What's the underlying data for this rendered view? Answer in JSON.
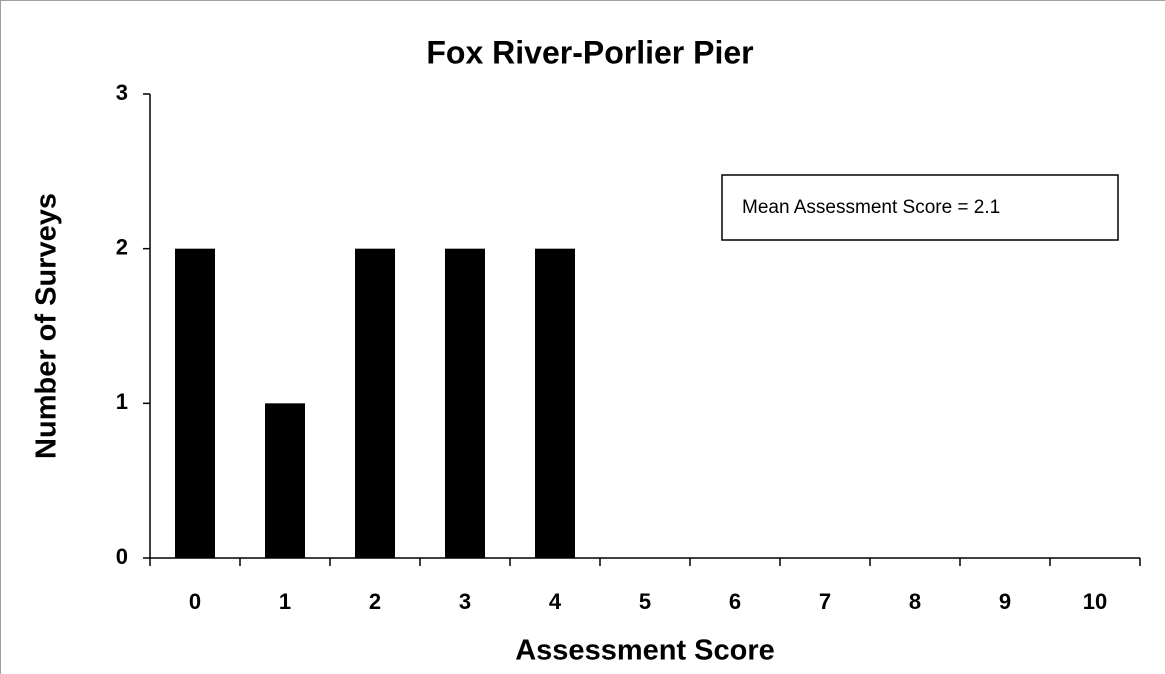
{
  "chart_data": {
    "type": "bar",
    "title": "Fox River-Porlier Pier",
    "x_label": "Assessment Score",
    "y_label": "Number of Surveys",
    "annotation": "Mean Assessment Score = 2.1",
    "categories": [
      "0",
      "1",
      "2",
      "3",
      "4",
      "5",
      "6",
      "7",
      "8",
      "9",
      "10"
    ],
    "values": [
      2,
      1,
      2,
      2,
      2,
      0,
      0,
      0,
      0,
      0,
      0
    ],
    "color": "#000000",
    "ylim": [
      0,
      3
    ],
    "yticks": [
      0,
      1,
      2,
      3
    ],
    "grid": false
  }
}
